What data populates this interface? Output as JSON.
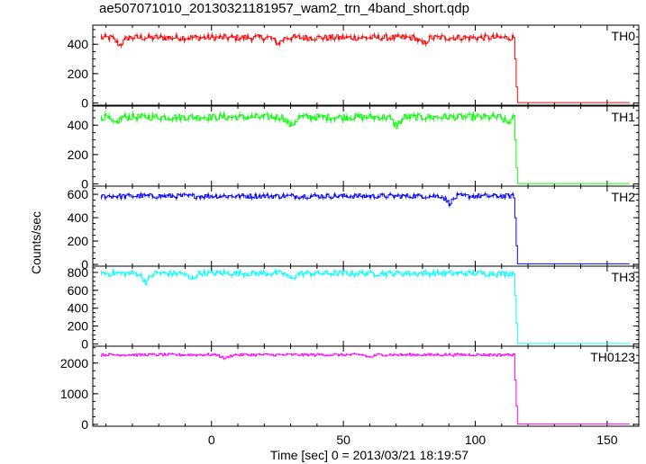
{
  "title": "ae507071010_20130321181957_wam2_trn_4band_short.qdp",
  "chart_data": {
    "type": "line",
    "title": "ae507071010_20130321181957_wam2_trn_4band_short.qdp",
    "xlabel": "Time [sec] 0 = 2013/03/21 18:19:57",
    "ylabel": "Counts/sec",
    "xlim": [
      -45,
      162
    ],
    "xticks": [
      0,
      50,
      100,
      150
    ],
    "step_time": 116,
    "data_end": 158,
    "panels": [
      {
        "name": "TH0",
        "color": "#ff0000",
        "ylim": [
          -15,
          530
        ],
        "yticks": [
          0,
          200,
          400
        ],
        "level": 445,
        "noise": 20,
        "dips": [
          {
            "x": -35,
            "depth": 50
          },
          {
            "x": 25,
            "depth": 40
          },
          {
            "x": 80,
            "depth": 45
          }
        ],
        "step": [
          300,
          110
        ],
        "post_level": 3
      },
      {
        "name": "TH1",
        "color": "#00ff00",
        "ylim": [
          -15,
          530
        ],
        "yticks": [
          0,
          200,
          400
        ],
        "level": 455,
        "noise": 22,
        "dips": [
          {
            "x": -37,
            "depth": 50
          },
          {
            "x": 30,
            "depth": 60
          },
          {
            "x": 70,
            "depth": 60
          },
          {
            "x": 112,
            "depth": 40
          }
        ],
        "step": [
          300,
          110
        ],
        "post_level": 3
      },
      {
        "name": "TH2",
        "color": "#0000ff",
        "ylim": [
          -15,
          670
        ],
        "yticks": [
          0,
          200,
          400,
          600
        ],
        "level": 585,
        "noise": 20,
        "dips": [
          {
            "x": 90,
            "depth": 60
          }
        ],
        "step": [
          400,
          160
        ],
        "post_level": 5
      },
      {
        "name": "TH3",
        "color": "#00ffff",
        "ylim": [
          -25,
          870
        ],
        "yticks": [
          0,
          200,
          400,
          600,
          800
        ],
        "level": 790,
        "noise": 30,
        "dips": [
          {
            "x": -25,
            "depth": 100
          },
          {
            "x": -8,
            "depth": 70
          },
          {
            "x": 30,
            "depth": 60
          }
        ],
        "step": [
          540,
          230
        ],
        "post_level": 5
      },
      {
        "name": "TH0123",
        "color": "#ff00ff",
        "ylim": [
          -60,
          2550
        ],
        "yticks": [
          0,
          1000,
          2000
        ],
        "level": 2270,
        "noise": 40,
        "dips": [
          {
            "x": 5,
            "depth": 120
          },
          {
            "x": 60,
            "depth": 80
          }
        ],
        "step": [
          1450,
          600
        ],
        "post_level": 10
      }
    ]
  }
}
